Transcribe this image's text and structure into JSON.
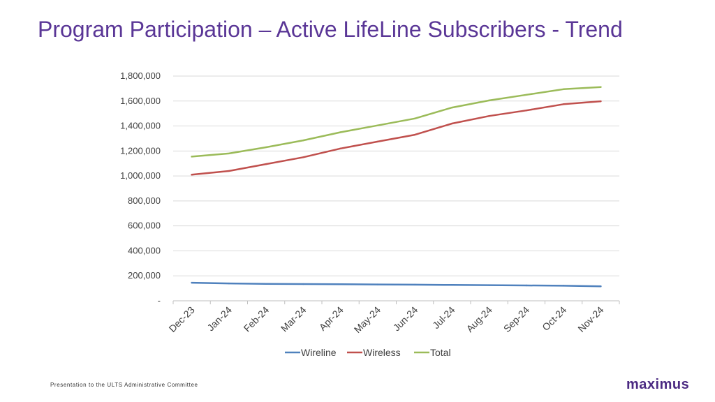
{
  "slide": {
    "title": "Program Participation – Active LifeLine Subscribers - Trend",
    "footer": "Presentation to the ULTS Administrative Committee",
    "logo": "maximus"
  },
  "colors": {
    "title": "#5a3696",
    "logo": "#4b2a82",
    "gridline": "#d9d9d9",
    "axis": "#bfbfbf"
  },
  "chart_data": {
    "type": "line",
    "title": "",
    "xlabel": "",
    "ylabel": "",
    "categories": [
      "Dec-23",
      "Jan-24",
      "Feb-24",
      "Mar-24",
      "Apr-24",
      "May-24",
      "Jun-24",
      "Jul-24",
      "Aug-24",
      "Sep-24",
      "Oct-24",
      "Nov-24"
    ],
    "ylim": [
      0,
      1800000
    ],
    "yticks": [
      0,
      200000,
      400000,
      600000,
      800000,
      1000000,
      1200000,
      1400000,
      1600000,
      1800000
    ],
    "ytick_labels": [
      "-",
      "200,000",
      "400,000",
      "600,000",
      "800,000",
      "1,000,000",
      "1,200,000",
      "1,400,000",
      "1,600,000",
      "1,800,000"
    ],
    "grid": true,
    "legend_position": "bottom",
    "series": [
      {
        "name": "Wireline",
        "color": "#4f81bd",
        "values": [
          145000,
          139000,
          136000,
          134000,
          133000,
          131000,
          129000,
          127000,
          125000,
          123000,
          121000,
          116000
        ]
      },
      {
        "name": "Wireless",
        "color": "#c0504d",
        "values": [
          1010000,
          1040000,
          1095000,
          1150000,
          1220000,
          1275000,
          1330000,
          1420000,
          1480000,
          1525000,
          1575000,
          1598000
        ]
      },
      {
        "name": "Total",
        "color": "#9bbb59",
        "values": [
          1155000,
          1180000,
          1230000,
          1285000,
          1350000,
          1405000,
          1460000,
          1548000,
          1605000,
          1650000,
          1695000,
          1712000
        ]
      }
    ]
  }
}
